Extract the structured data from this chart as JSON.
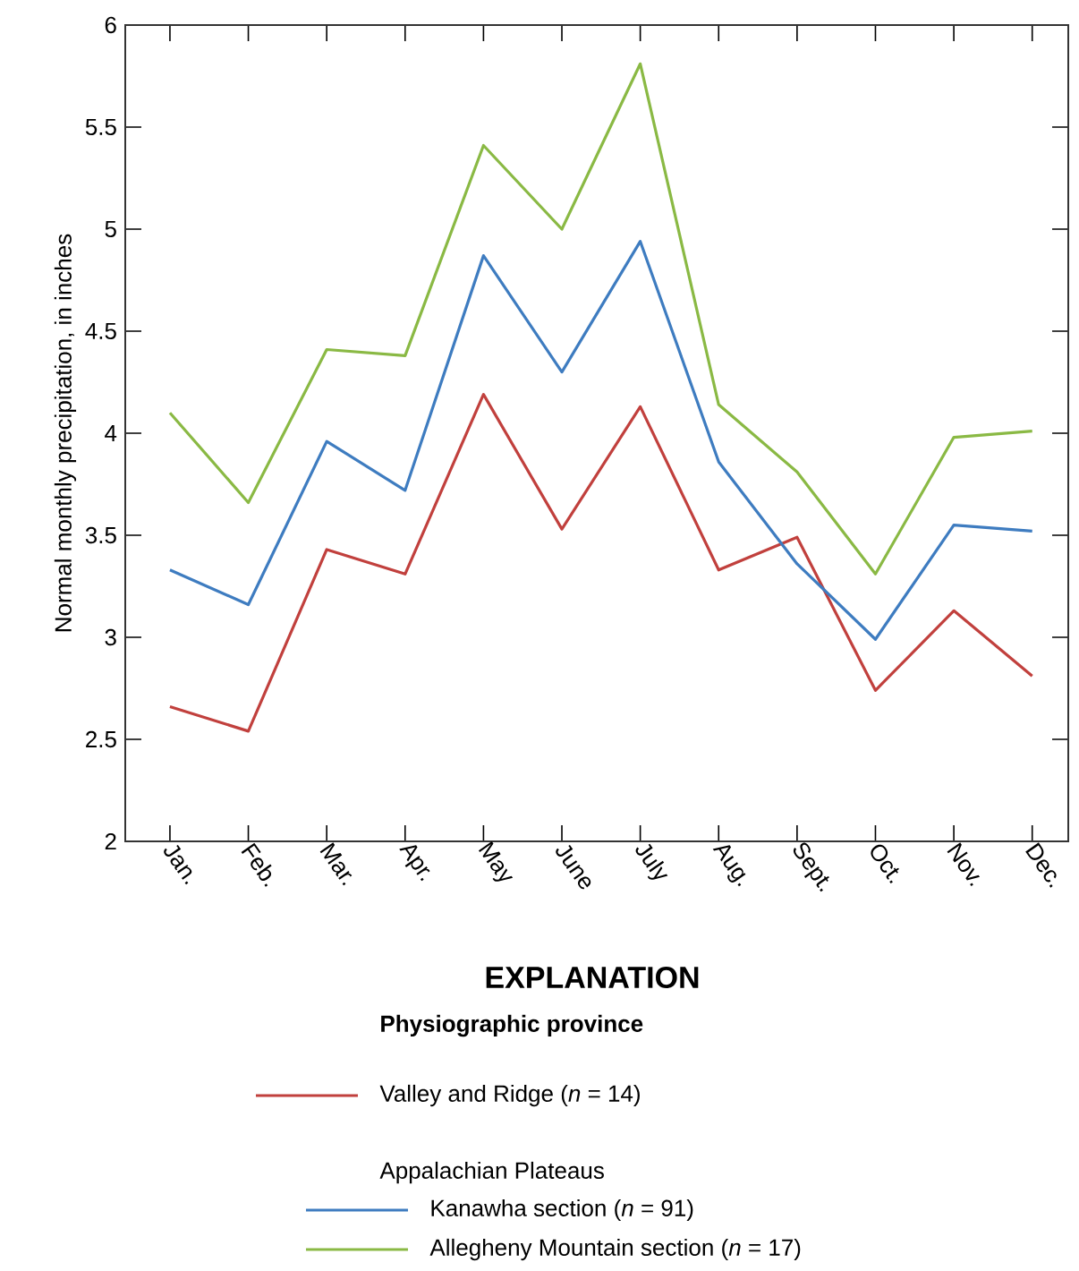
{
  "chart_data": {
    "type": "line",
    "ylabel": "Normal monthly precipitation, in inches",
    "legend_title": "EXPLANATION",
    "annotations": [
      "Physiographic province",
      "Appalachian Plateaus"
    ],
    "categories": [
      "Jan.",
      "Feb.",
      "Mar.",
      "Apr.",
      "May",
      "June",
      "July",
      "Aug.",
      "Sept.",
      "Oct.",
      "Nov.",
      "Dec."
    ],
    "ylim": [
      2,
      6
    ],
    "yticks": [
      2,
      2.5,
      3,
      3.5,
      4,
      4.5,
      5,
      5.5,
      6
    ],
    "legend": "bottom",
    "series": [
      {
        "name": "Valley and Ridge (*n* = 14)",
        "color": "#c1403d",
        "values": [
          2.66,
          2.54,
          3.43,
          3.31,
          4.19,
          3.53,
          4.13,
          3.33,
          3.49,
          2.74,
          3.13,
          2.81
        ]
      },
      {
        "name": "Kanawha section (*n* = 91)",
        "color": "#3e7cc0",
        "values": [
          3.33,
          3.16,
          3.96,
          3.72,
          4.87,
          4.3,
          4.94,
          3.86,
          3.36,
          2.99,
          3.55,
          3.52
        ]
      },
      {
        "name": "Allegheny Mountain section (*n* = 17)",
        "color": "#8ab944",
        "values": [
          4.1,
          3.66,
          4.41,
          4.38,
          5.41,
          5.0,
          5.81,
          4.14,
          3.81,
          3.31,
          3.98,
          4.01
        ]
      }
    ]
  }
}
